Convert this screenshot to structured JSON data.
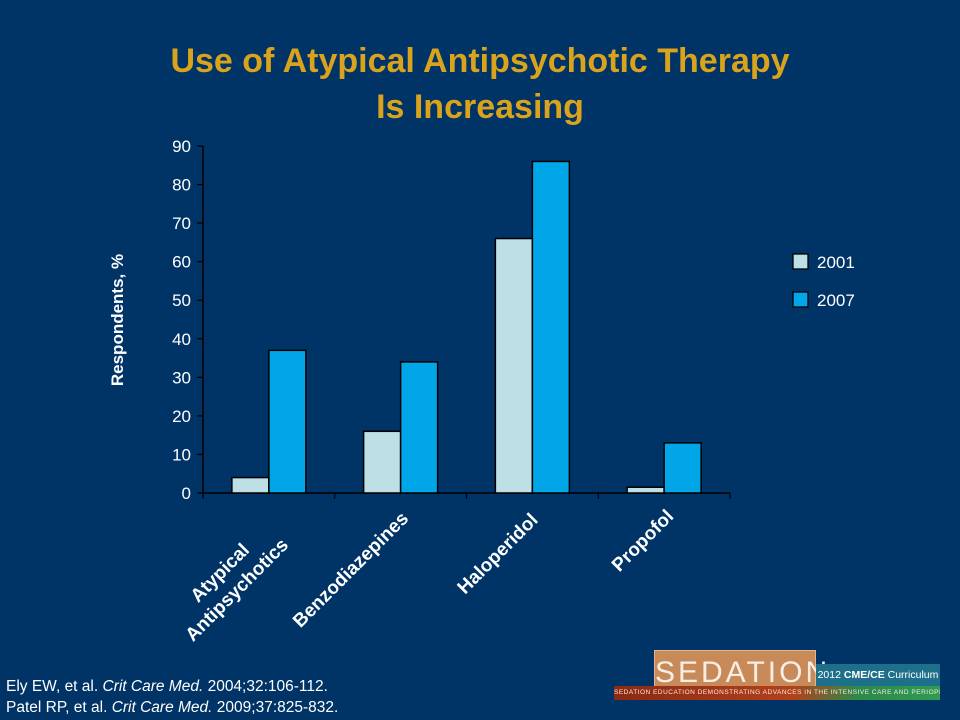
{
  "title": {
    "line1": "Use of Atypical Antipsychotic Therapy",
    "line2": "Is Increasing"
  },
  "colors": {
    "background": "#003366",
    "title": "#d9a31c",
    "series_2001": "#bde0e6",
    "series_2007": "#00a6e8"
  },
  "chart_data": {
    "type": "bar",
    "categories": [
      "Atypical\nAntipsychotics",
      "Benzodiazepines",
      "Haloperidol",
      "Propofol"
    ],
    "series": [
      {
        "name": "2001",
        "values": [
          4,
          16,
          66,
          1.5
        ]
      },
      {
        "name": "2007",
        "values": [
          37,
          34,
          86,
          13
        ]
      }
    ],
    "xlabel": "",
    "ylabel": "Respondents, %",
    "ylim": [
      0,
      90
    ],
    "yticks": [
      0,
      10,
      20,
      30,
      40,
      50,
      60,
      70,
      80,
      90
    ],
    "grid": false,
    "legend_position": "right"
  },
  "references": [
    {
      "authors": "Ely EW, et al. ",
      "journal": "Crit Care Med.",
      "detail": " 2004;32:106-112."
    },
    {
      "authors": "Patel RP, et al. ",
      "journal": "Crit Care Med.",
      "detail": " 2009;37:825-832."
    }
  ],
  "logo": {
    "brand": "SEDATION",
    "tm": "™",
    "year_prefix": "2012 ",
    "cme": "CME/CE",
    "curriculum": " Curriculum",
    "tagline": "SEDATION EDUCATION DEMONSTRATING ADVANCES IN THE INTENSIVE CARE AND PERIOPERATIVE SETTINGS"
  }
}
